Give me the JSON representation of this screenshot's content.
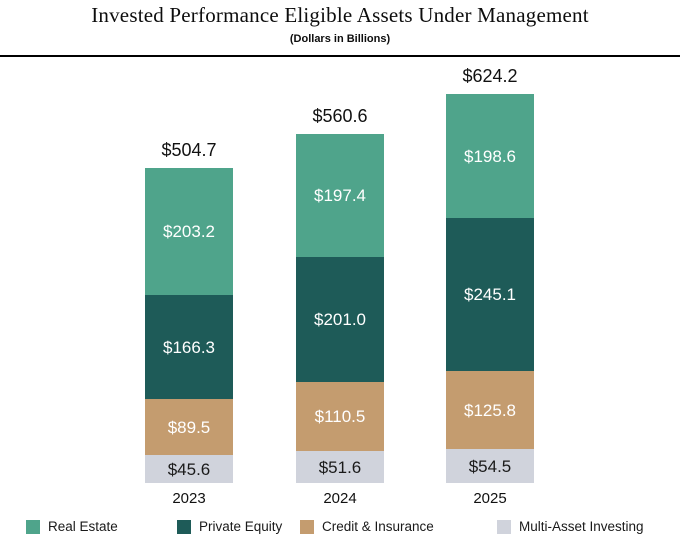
{
  "header": {
    "title": "Invested Performance Eligible Assets Under Management",
    "subtitle": "(Dollars in Billions)"
  },
  "chart_data": {
    "type": "bar",
    "stacked": true,
    "title": "Invested Performance Eligible Assets Under Management",
    "subtitle": "(Dollars in Billions)",
    "units": "Dollars in Billions",
    "value_prefix": "$",
    "categories": [
      "2023",
      "2024",
      "2025"
    ],
    "series": [
      {
        "name": "Multi-Asset Investing",
        "color": "#D0D3DC",
        "label_color": "#1a1a1a",
        "values": [
          45.6,
          51.6,
          54.5
        ]
      },
      {
        "name": "Credit & Insurance",
        "color": "#C49C6F",
        "label_color": "#ffffff",
        "values": [
          89.5,
          110.5,
          125.8
        ]
      },
      {
        "name": "Private Equity",
        "color": "#1E5B58",
        "label_color": "#ffffff",
        "values": [
          166.3,
          201.0,
          245.1
        ]
      },
      {
        "name": "Real Estate",
        "color": "#4FA48B",
        "label_color": "#ffffff",
        "values": [
          203.2,
          197.4,
          198.6
        ]
      }
    ],
    "totals": [
      504.7,
      560.6,
      624.2
    ],
    "legend": [
      {
        "label": "Real Estate",
        "color": "#4FA48B"
      },
      {
        "label": "Private Equity",
        "color": "#1E5B58"
      },
      {
        "label": "Credit & Insurance",
        "color": "#C49C6F"
      },
      {
        "label": "Multi-Asset Investing",
        "color": "#D0D3DC"
      }
    ],
    "legend_position": "bottom",
    "grid": false,
    "ylim": [
      0,
      650
    ]
  }
}
